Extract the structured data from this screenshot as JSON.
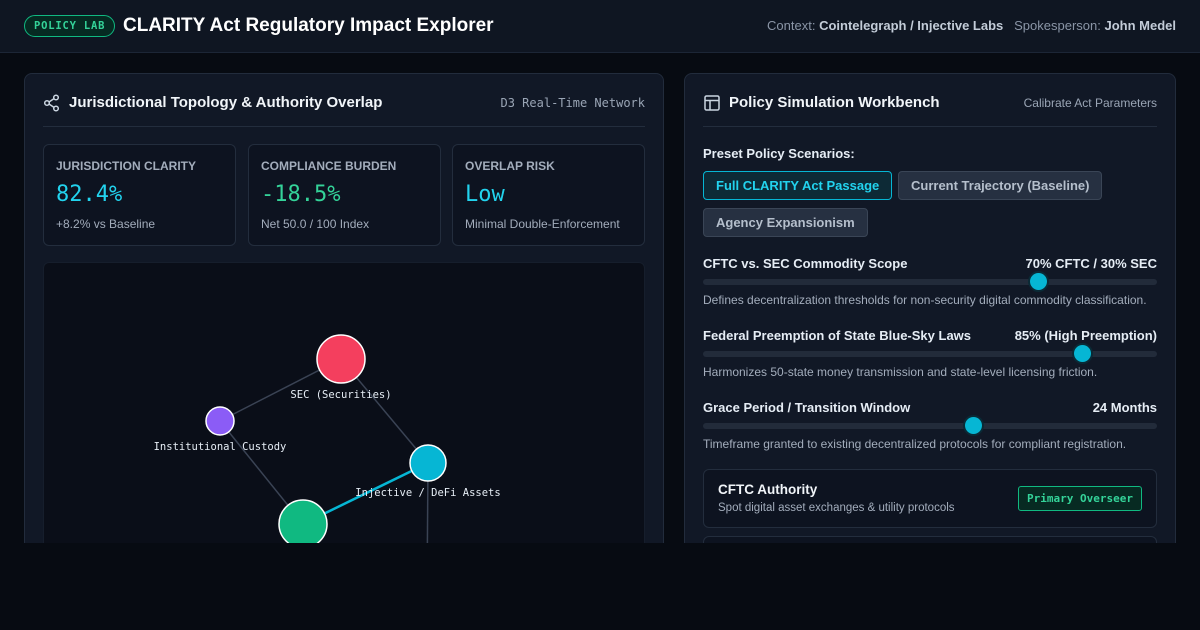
{
  "header": {
    "badge": "POLICY LAB",
    "title": "CLARITY Act Regulatory Impact Explorer",
    "context_label": "Context:",
    "context_value": "Cointelegraph / Injective Labs",
    "spokesperson_label": "Spokesperson:",
    "spokesperson_value": "John Medel"
  },
  "left_panel": {
    "icon": "share-network-icon",
    "title": "Jurisdictional Topology & Authority Overlap",
    "meta": "D3 Real-Time Network",
    "stats": [
      {
        "label": "JURISDICTION CLARITY",
        "value": "82.4%",
        "sub": "+8.2% vs Baseline",
        "color": "#22d3ee"
      },
      {
        "label": "COMPLIANCE BURDEN",
        "value": "-18.5%",
        "sub": "Net 50.0 / 100 Index",
        "color": "#34d399"
      },
      {
        "label": "OVERLAP RISK",
        "value": "Low",
        "sub": "Minimal Double-Enforcement",
        "color": "#22d3ee"
      }
    ],
    "network": {
      "nodes": [
        {
          "id": "sec",
          "label": "SEC (Securities)",
          "color": "#f43f5e"
        },
        {
          "id": "custody",
          "label": "Institutional Custody",
          "color": "#8b5cf6"
        },
        {
          "id": "defi",
          "label": "Injective / DeFi Assets",
          "color": "#06b6d4"
        },
        {
          "id": "cftc",
          "label": "",
          "color": "#10b981"
        }
      ],
      "links": [
        {
          "source": "custody",
          "target": "sec",
          "highlight": false
        },
        {
          "source": "sec",
          "target": "defi",
          "highlight": false
        },
        {
          "source": "custody",
          "target": "cftc",
          "highlight": false
        },
        {
          "source": "defi",
          "target": "cftc",
          "highlight": true
        },
        {
          "source": "defi",
          "target": "offscreen",
          "highlight": false
        }
      ]
    }
  },
  "right_panel": {
    "icon": "layout-icon",
    "title": "Policy Simulation Workbench",
    "meta": "Calibrate Act Parameters",
    "scenarios_label": "Preset Policy Scenarios:",
    "scenarios": [
      {
        "label": "Full CLARITY Act Passage",
        "active": true
      },
      {
        "label": "Current Trajectory (Baseline)",
        "active": false
      },
      {
        "label": "Agency Expansionism",
        "active": false
      }
    ],
    "sliders": [
      {
        "label": "CFTC vs. SEC Commodity Scope",
        "value": "70% CFTC / 30% SEC",
        "fraction": 0.74,
        "desc": "Defines decentralization thresholds for non-security digital commodity classification."
      },
      {
        "label": "Federal Preemption of State Blue-Sky Laws",
        "value": "85% (High Preemption)",
        "fraction": 0.837,
        "desc": "Harmonizes 50-state money transmission and state-level licensing friction."
      },
      {
        "label": "Grace Period / Transition Window",
        "value": "24 Months",
        "fraction": 0.595,
        "desc": "Timeframe granted to existing decentralized protocols for compliant registration."
      }
    ],
    "authority": {
      "title": "CFTC Authority",
      "sub": "Spot digital asset exchanges & utility protocols",
      "badge": "Primary Overseer"
    }
  },
  "colors": {
    "accent": "#06b6d4",
    "success": "#10b981",
    "danger": "#f43f5e",
    "violet": "#8b5cf6"
  }
}
